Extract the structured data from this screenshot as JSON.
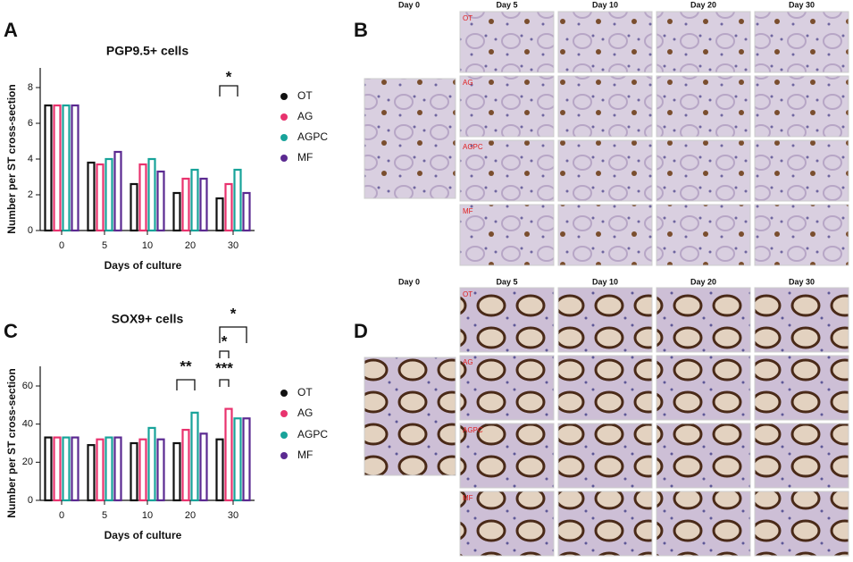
{
  "chart_data": [
    {
      "type": "bar",
      "panel_label": "A",
      "title": "PGP9.5+ cells",
      "x_label": "Days of culture",
      "y_label": "Number  per ST cross-section",
      "categories": [
        "0",
        "5",
        "10",
        "20",
        "30"
      ],
      "series": [
        {
          "name": "OT",
          "color": "#111111",
          "values": [
            7.0,
            3.8,
            2.6,
            2.1,
            1.8
          ]
        },
        {
          "name": "AG",
          "color": "#e8336e",
          "values": [
            7.0,
            3.7,
            3.7,
            2.9,
            2.6
          ]
        },
        {
          "name": "AGPC",
          "color": "#18a39a",
          "values": [
            7.0,
            4.0,
            4.0,
            3.4,
            3.4
          ]
        },
        {
          "name": "MF",
          "color": "#5b2a91",
          "values": [
            7.0,
            4.4,
            3.3,
            2.9,
            2.1
          ]
        }
      ],
      "ylim": [
        0,
        8
      ],
      "yticks": [
        0,
        2,
        4,
        6,
        8
      ],
      "annotations": [
        "*"
      ]
    },
    {
      "type": "bar",
      "panel_label": "C",
      "title": "SOX9+ cells",
      "x_label": "Days of culture",
      "y_label": "Number per ST cross-section",
      "categories": [
        "0",
        "5",
        "10",
        "20",
        "30"
      ],
      "series": [
        {
          "name": "OT",
          "color": "#111111",
          "values": [
            33,
            29,
            30,
            30,
            32
          ]
        },
        {
          "name": "AG",
          "color": "#e8336e",
          "values": [
            33,
            32,
            32,
            37,
            48
          ]
        },
        {
          "name": "AGPC",
          "color": "#18a39a",
          "values": [
            33,
            33,
            38,
            46,
            43
          ]
        },
        {
          "name": "MF",
          "color": "#5b2a91",
          "values": [
            33,
            33,
            32,
            35,
            43
          ]
        }
      ],
      "ylim": [
        0,
        60
      ],
      "yticks": [
        0,
        20,
        40,
        60
      ],
      "annotations": [
        "**",
        "***",
        "*",
        "*"
      ]
    }
  ],
  "panels": [
    {
      "letter": "B",
      "columns": [
        "Day 0",
        "Day 5",
        "Day 10",
        "Day 20",
        "Day 30"
      ],
      "rows": [
        "OT",
        "AG",
        "AGPC",
        "MF"
      ]
    },
    {
      "letter": "D",
      "columns": [
        "Day 0",
        "Day 5",
        "Day 10",
        "Day 20",
        "Day 30"
      ],
      "rows": [
        "OT",
        "AG",
        "AGPC",
        "MF"
      ]
    }
  ]
}
